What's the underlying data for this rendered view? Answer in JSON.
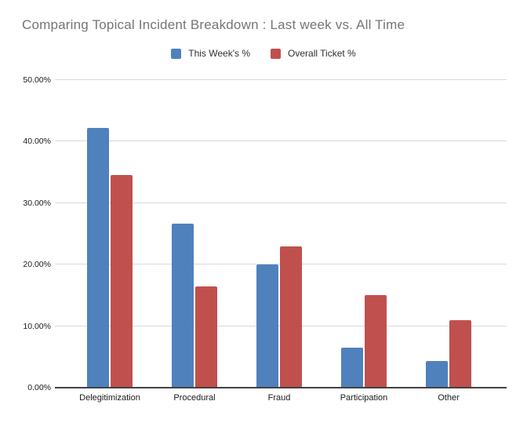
{
  "title": "Comparing Topical Incident Breakdown : Last week vs. All Time",
  "colors": {
    "series_blue": "#4f81bd",
    "series_red": "#c0504d",
    "title_text": "#757575",
    "gridline": "#d9d9d9",
    "axis_line": "#424242",
    "tick_text": "#1a1a1a"
  },
  "chart_data": {
    "type": "bar",
    "title": "Comparing Topical Incident Breakdown : Last week vs. All Time",
    "categories": [
      "Delegitimization",
      "Procedural",
      "Fraud",
      "Participation",
      "Other"
    ],
    "series": [
      {
        "name": "This Week's %",
        "color": "#4f81bd",
        "values": [
          42.2,
          26.7,
          20.0,
          6.5,
          4.4
        ]
      },
      {
        "name": "Overall Ticket %",
        "color": "#c0504d",
        "values": [
          34.6,
          16.5,
          22.9,
          15.0,
          11.0
        ]
      }
    ],
    "xlabel": "",
    "ylabel": "",
    "ylim": [
      0,
      50
    ],
    "y_ticks": [
      "0.00%",
      "10.00%",
      "20.00%",
      "30.00%",
      "40.00%",
      "50.00%"
    ],
    "y_tick_values": [
      0,
      10,
      20,
      30,
      40,
      50
    ],
    "grid": true,
    "legend_position": "top-center"
  }
}
